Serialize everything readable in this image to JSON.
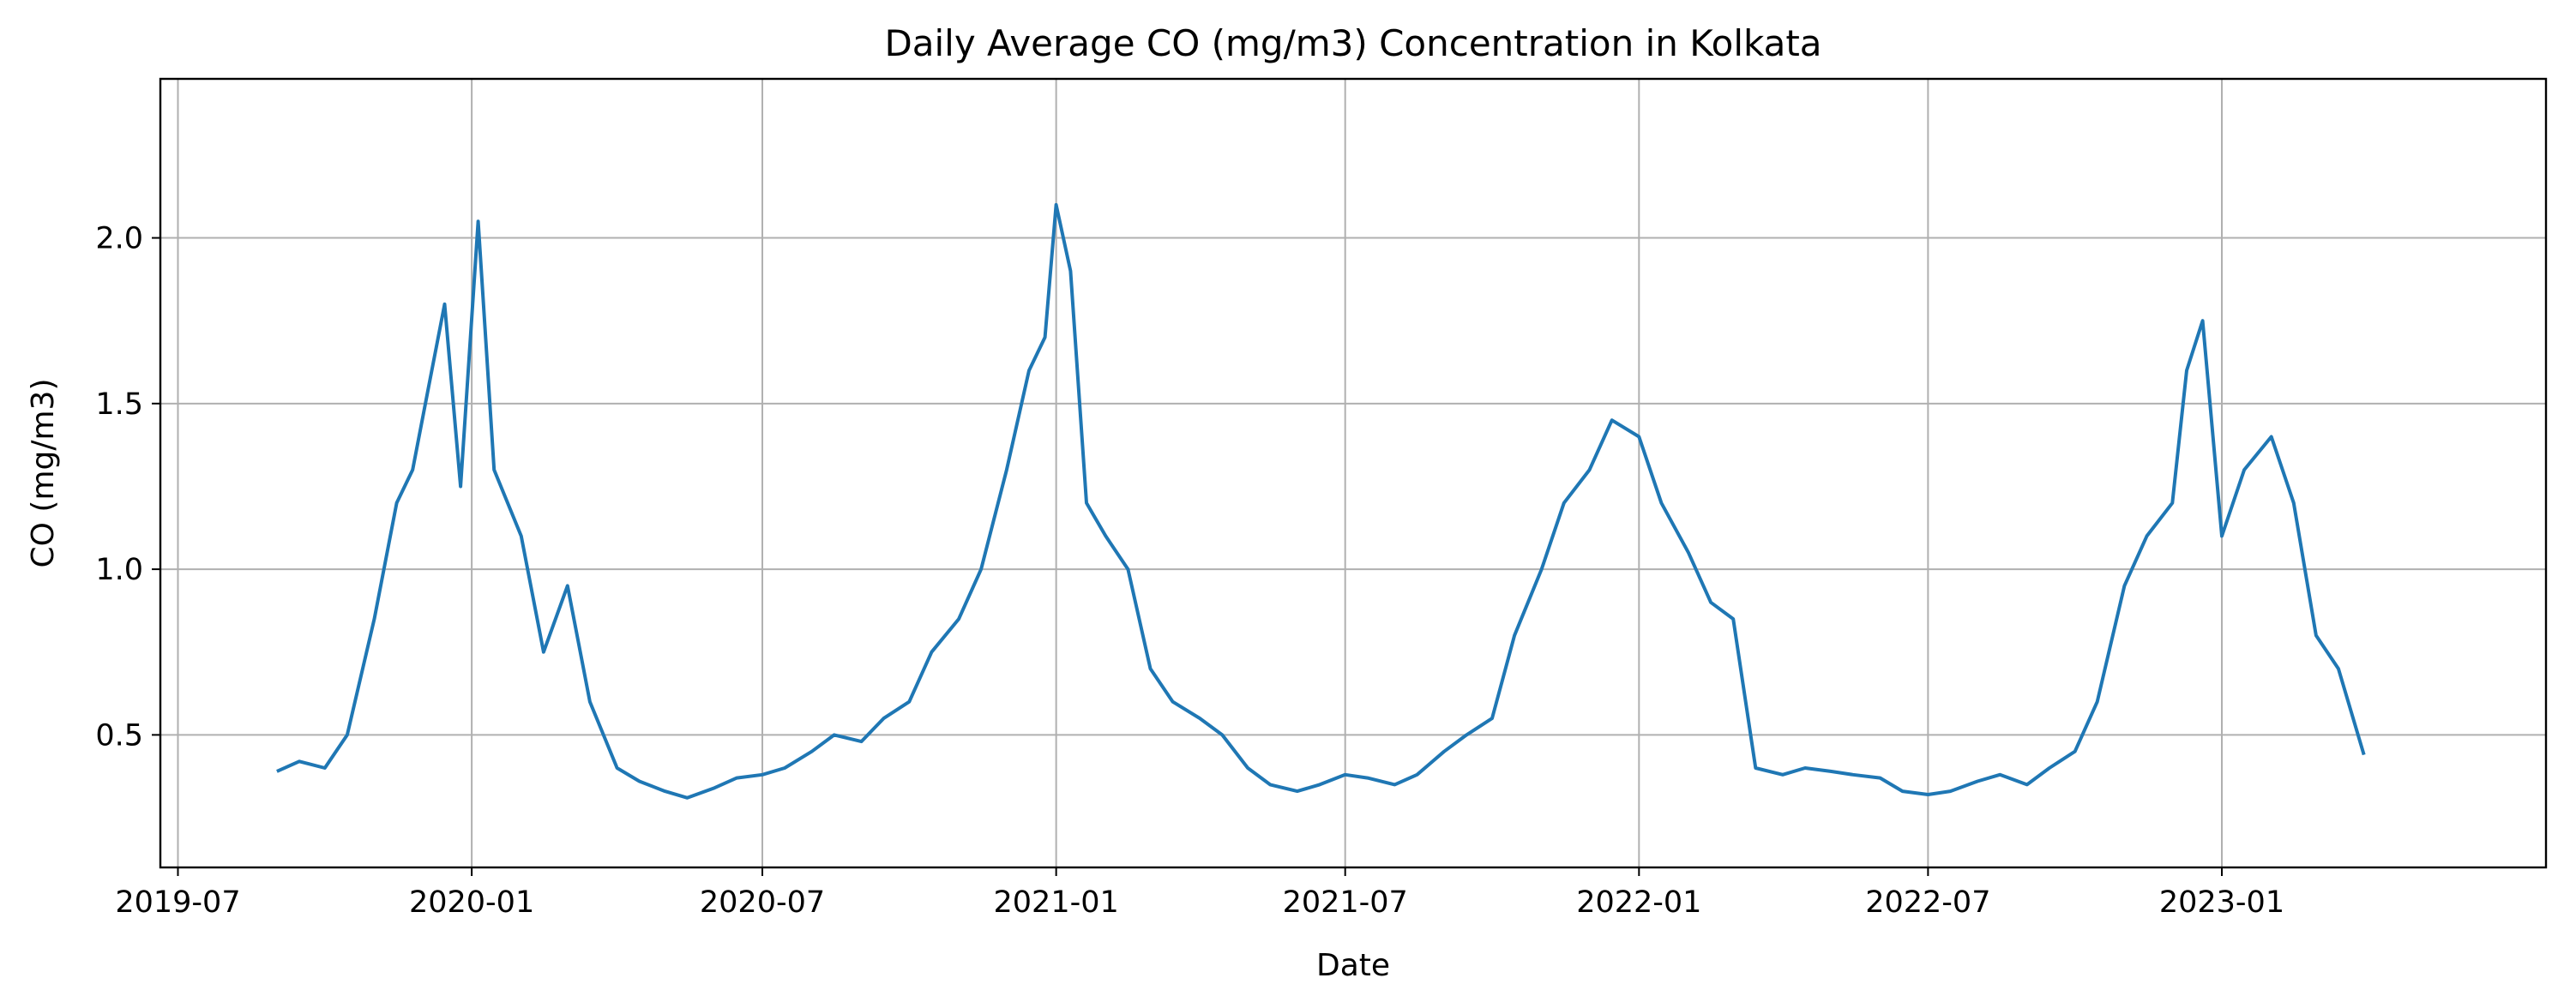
{
  "chart_data": {
    "type": "line",
    "title": "Daily Average CO (mg/m3) Concentration in Kolkata",
    "xlabel": "Date",
    "ylabel": "CO (mg/m3)",
    "x_ticks": [
      "2019-07",
      "2020-01",
      "2020-07",
      "2021-01",
      "2021-07",
      "2022-01",
      "2022-07",
      "2023-01"
    ],
    "y_ticks": [
      "0.5",
      "1.0",
      "1.5",
      "2.0"
    ],
    "xlim": [
      "2019-06-20",
      "2023-07-23"
    ],
    "ylim": [
      0.1,
      2.48
    ],
    "grid": true,
    "line_color": "#1f77b4",
    "series": [
      {
        "x": [
          "2019-09-01",
          "2019-09-15",
          "2019-10-01",
          "2019-10-15",
          "2019-11-01",
          "2019-11-15",
          "2019-11-25",
          "2019-12-05",
          "2019-12-15",
          "2019-12-25",
          "2020-01-05",
          "2020-01-15",
          "2020-02-01",
          "2020-02-15",
          "2020-03-01",
          "2020-03-15",
          "2020-04-01",
          "2020-04-15",
          "2020-05-01",
          "2020-05-15",
          "2020-06-01",
          "2020-06-15",
          "2020-07-01",
          "2020-07-15",
          "2020-08-01",
          "2020-08-15",
          "2020-09-01",
          "2020-09-15",
          "2020-10-01",
          "2020-10-15",
          "2020-11-01",
          "2020-11-15",
          "2020-12-01",
          "2020-12-15",
          "2020-12-25",
          "2021-01-01",
          "2021-01-10",
          "2021-01-20",
          "2021-02-01",
          "2021-02-15",
          "2021-03-01",
          "2021-03-15",
          "2021-04-01",
          "2021-04-15",
          "2021-05-01",
          "2021-05-15",
          "2021-06-01",
          "2021-06-15",
          "2021-07-01",
          "2021-07-15",
          "2021-08-01",
          "2021-08-15",
          "2021-09-01",
          "2021-09-15",
          "2021-10-01",
          "2021-10-15",
          "2021-11-01",
          "2021-11-15",
          "2021-12-01",
          "2021-12-15",
          "2022-01-01",
          "2022-01-15",
          "2022-02-01",
          "2022-02-15",
          "2022-03-01",
          "2022-03-15",
          "2022-04-01",
          "2022-04-15",
          "2022-05-01",
          "2022-05-15",
          "2022-06-01",
          "2022-06-15",
          "2022-07-01",
          "2022-07-15",
          "2022-08-01",
          "2022-08-15",
          "2022-09-01",
          "2022-09-15",
          "2022-10-01",
          "2022-10-15",
          "2022-11-01",
          "2022-11-15",
          "2022-12-01",
          "2022-12-10",
          "2022-12-20",
          "2023-01-01",
          "2023-01-15",
          "2023-02-01",
          "2023-02-15",
          "2023-03-01",
          "2023-03-15",
          "2023-03-31"
        ],
        "y": [
          0.39,
          0.42,
          0.4,
          0.5,
          0.85,
          1.2,
          1.3,
          1.55,
          1.8,
          1.25,
          2.05,
          1.3,
          1.1,
          0.75,
          0.95,
          0.6,
          0.4,
          0.36,
          0.33,
          0.31,
          0.34,
          0.37,
          0.38,
          0.4,
          0.45,
          0.5,
          0.48,
          0.55,
          0.6,
          0.75,
          0.85,
          1.0,
          1.3,
          1.6,
          1.7,
          2.1,
          1.9,
          1.2,
          1.1,
          1.0,
          0.7,
          0.6,
          0.55,
          0.5,
          0.4,
          0.35,
          0.33,
          0.35,
          0.38,
          0.37,
          0.35,
          0.38,
          0.45,
          0.5,
          0.55,
          0.8,
          1.0,
          1.2,
          1.3,
          1.45,
          1.4,
          1.2,
          1.05,
          0.9,
          0.85,
          0.4,
          0.38,
          0.4,
          0.39,
          0.38,
          0.37,
          0.33,
          0.32,
          0.33,
          0.36,
          0.38,
          0.35,
          0.4,
          0.45,
          0.6,
          0.95,
          1.1,
          1.2,
          1.6,
          1.75,
          1.1,
          1.3,
          1.4,
          1.2,
          0.8,
          0.7,
          0.44
        ]
      }
    ]
  }
}
